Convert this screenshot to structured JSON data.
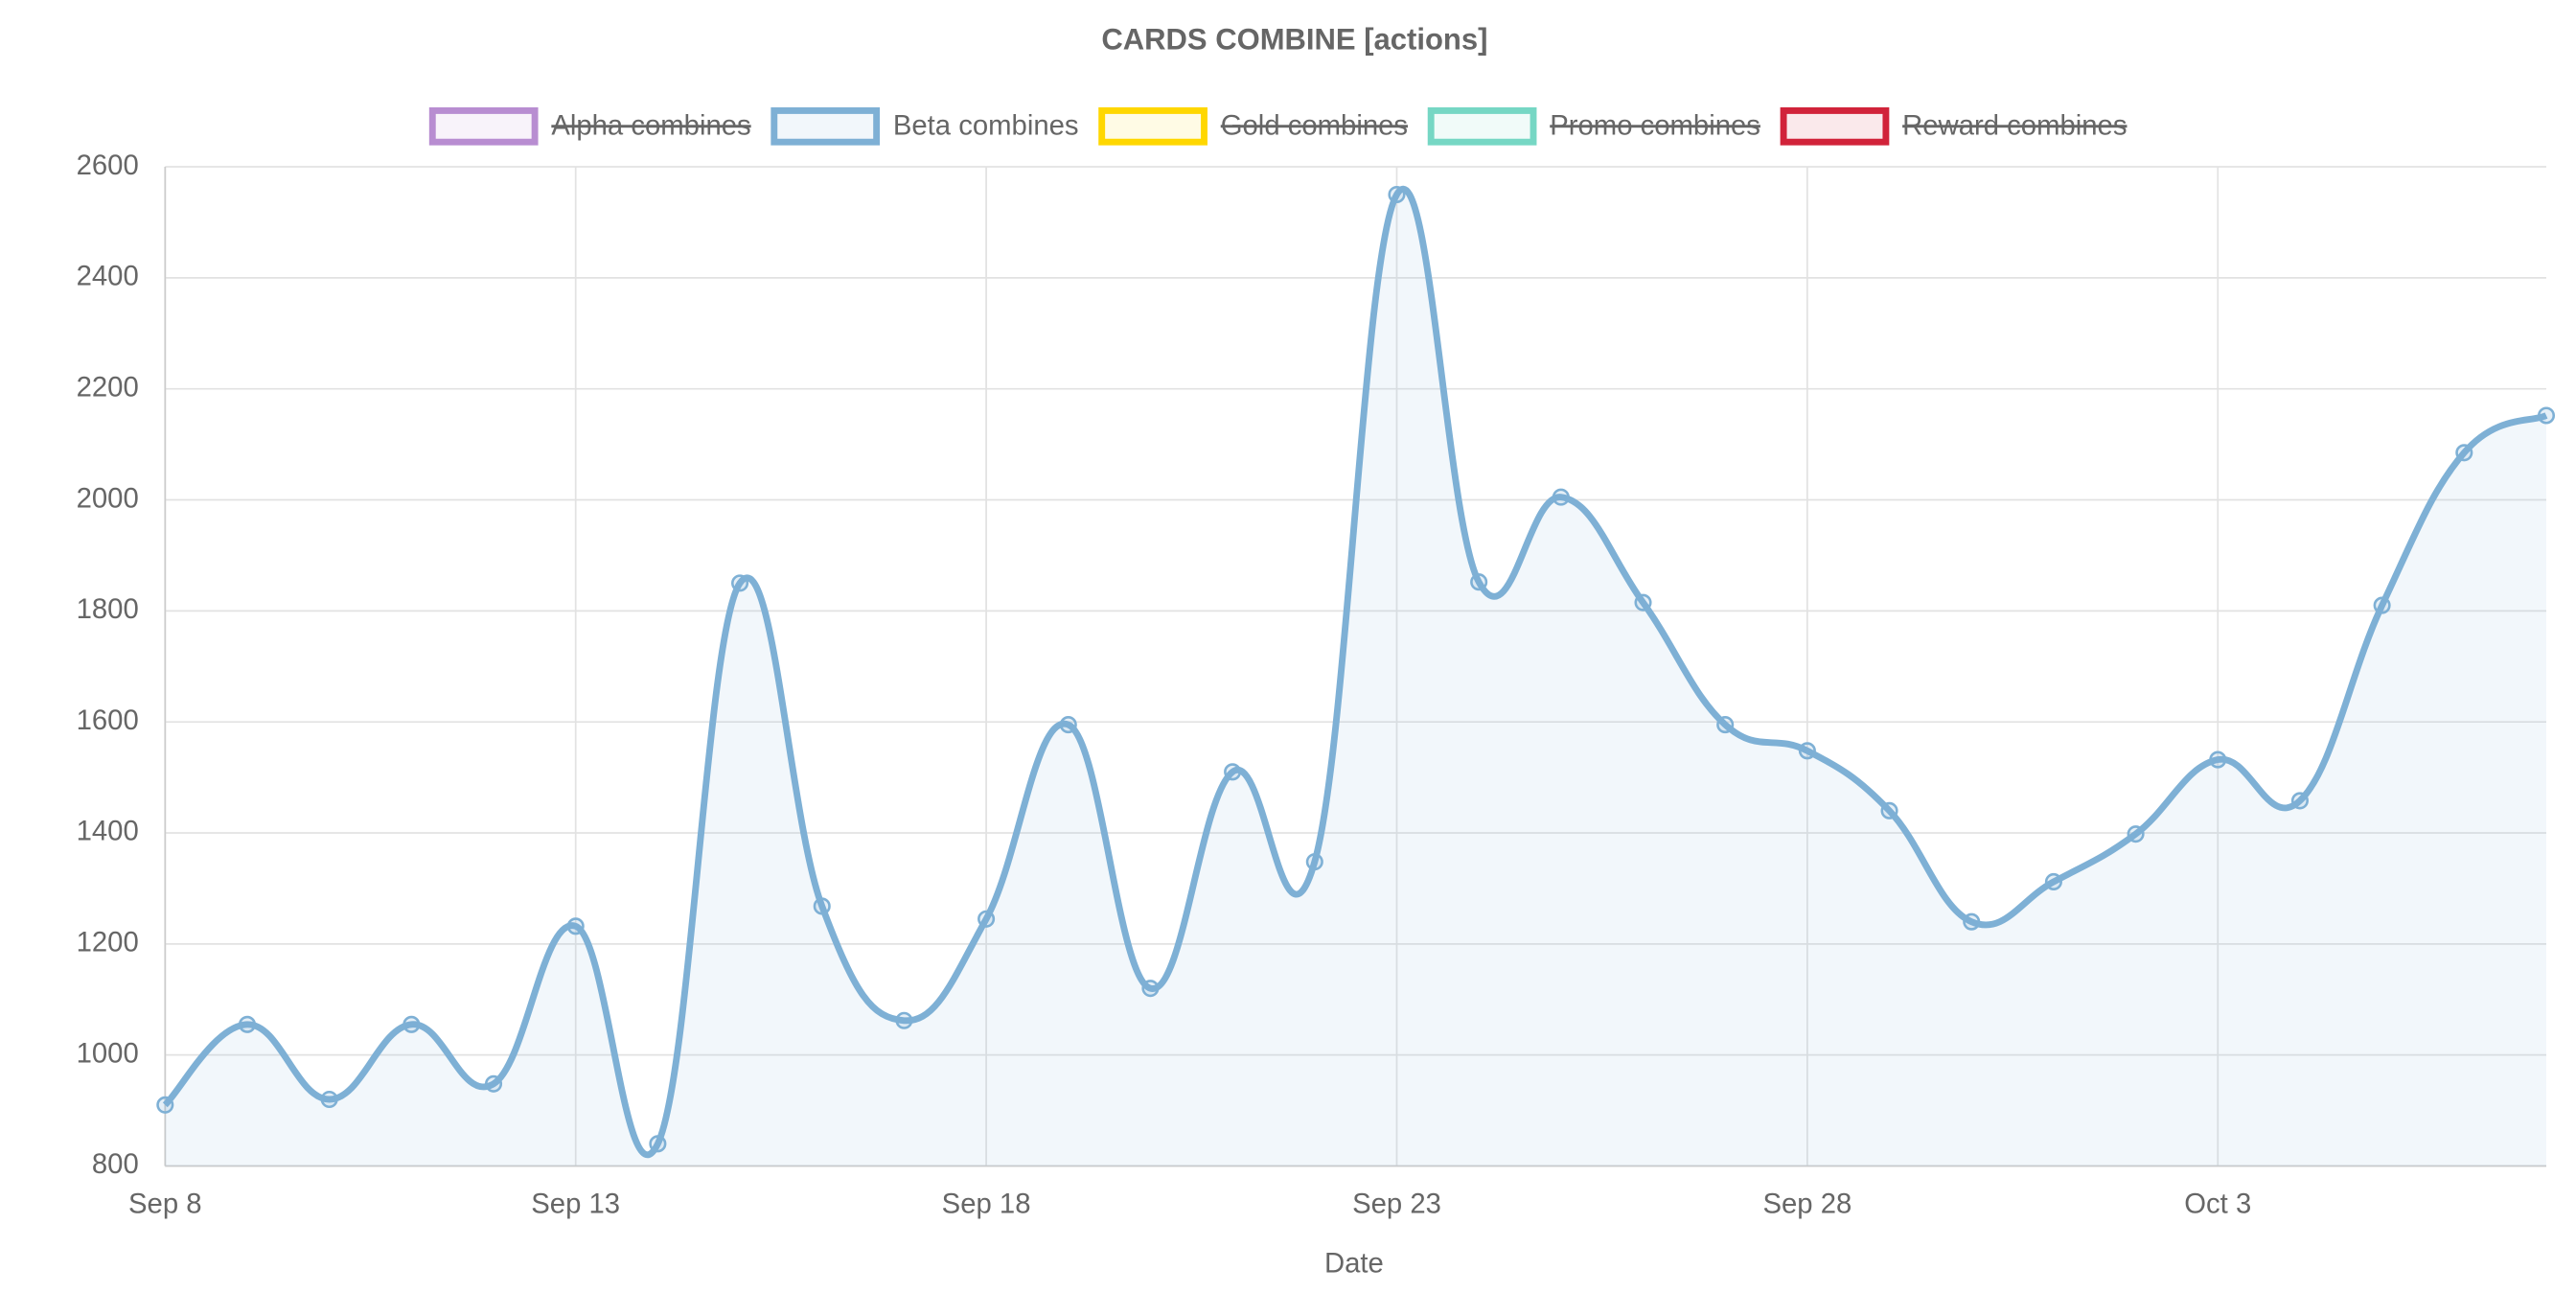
{
  "chart_data": {
    "type": "line",
    "title": "CARDS COMBINE [actions]",
    "xlabel": "Date",
    "categories": [
      "Sep 8",
      null,
      null,
      null,
      null,
      "Sep 13",
      null,
      null,
      null,
      null,
      "Sep 18",
      null,
      null,
      null,
      null,
      "Sep 23",
      null,
      null,
      null,
      null,
      "Sep 28",
      null,
      null,
      null,
      null,
      "Oct 3",
      null,
      null,
      null,
      null
    ],
    "series": [
      {
        "name": "Alpha combines",
        "color": "#b88dd1",
        "hidden": true
      },
      {
        "name": "Beta combines",
        "color": "#7eb0d5",
        "values": [
          910,
          1055,
          920,
          1055,
          948,
          1232,
          840,
          1850,
          1268,
          1062,
          1245,
          1595,
          1120,
          1510,
          1348,
          2550,
          1852,
          2005,
          1815,
          1595,
          1548,
          1440,
          1240,
          1312,
          1398,
          1532,
          1458,
          1810,
          2085,
          2152
        ]
      },
      {
        "name": "Gold combines",
        "color": "#ffd700",
        "hidden": true
      },
      {
        "name": "Promo combines",
        "color": "#76d7c4",
        "hidden": true
      },
      {
        "name": "Reward combines",
        "color": "#d1233a",
        "hidden": true
      }
    ],
    "ylim": [
      800,
      2600
    ],
    "yticks": [
      800,
      1000,
      1200,
      1400,
      1600,
      1800,
      2000,
      2200,
      2400,
      2600
    ],
    "grid": true,
    "legend": "top"
  }
}
